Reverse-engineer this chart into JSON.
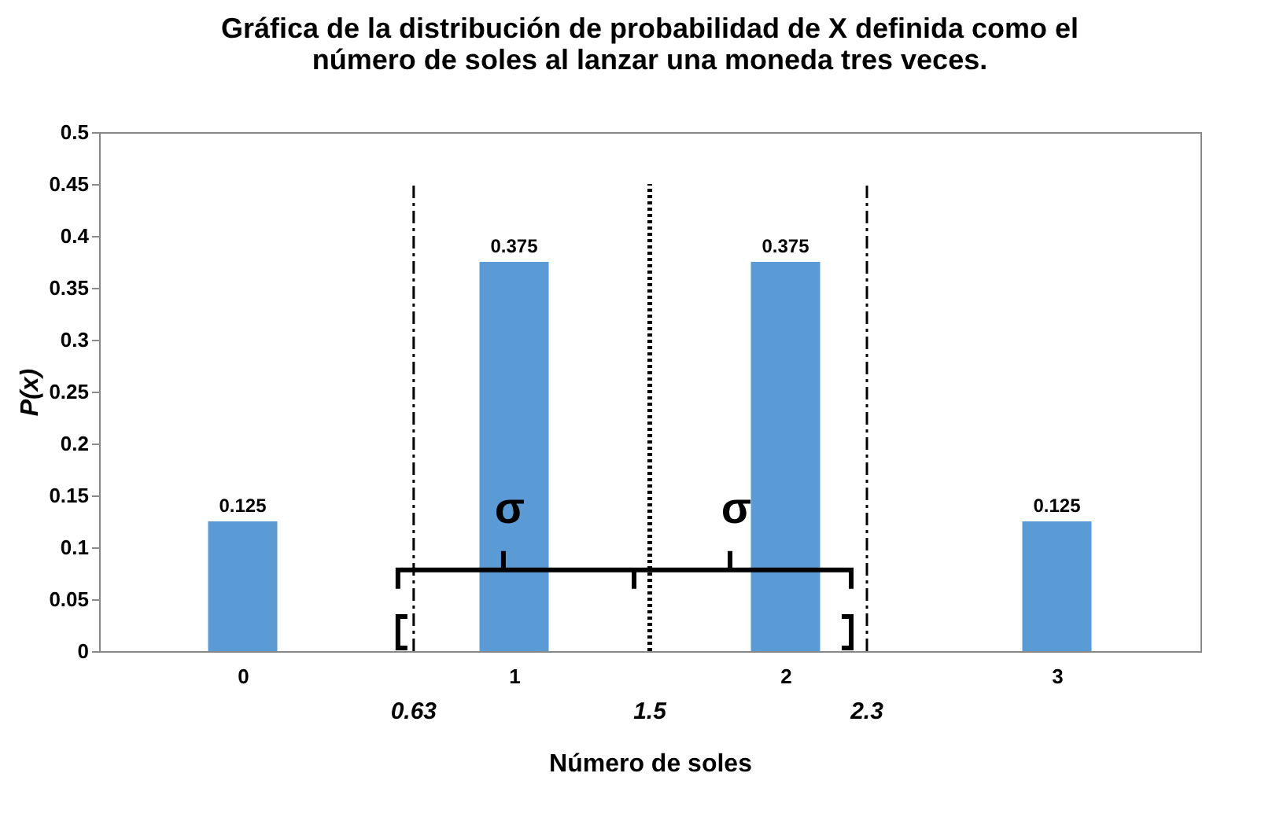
{
  "chart_data": {
    "type": "bar",
    "title": "Gráfica de la distribución de probabilidad de X definida como el\nnúmero de soles al lanzar una moneda tres veces.",
    "xlabel": "Número de soles",
    "ylabel": "P(x)",
    "x": [
      0,
      1,
      2,
      3
    ],
    "values": [
      0.125,
      0.375,
      0.375,
      0.125
    ],
    "color": "#5b9bd5",
    "xlim": [
      -0.5,
      3.5
    ],
    "xticks": [
      0,
      1,
      2,
      3
    ],
    "ylim": [
      0,
      0.5
    ],
    "yticks": [
      0,
      0.05,
      0.1,
      0.15,
      0.2,
      0.25,
      0.3,
      0.35,
      0.4,
      0.45,
      0.5
    ],
    "data_labels": true,
    "grid": false,
    "ref_lines": [
      {
        "axis": "x",
        "value": 0.63,
        "label": "0.63",
        "line_style": "dashed"
      },
      {
        "axis": "x",
        "value": 1.5,
        "label": "1.5",
        "line_style": "dotted"
      },
      {
        "axis": "x",
        "value": 2.3,
        "label": "2.3",
        "line_style": "dashed"
      }
    ],
    "annotations": [
      "σ",
      "σ"
    ]
  }
}
